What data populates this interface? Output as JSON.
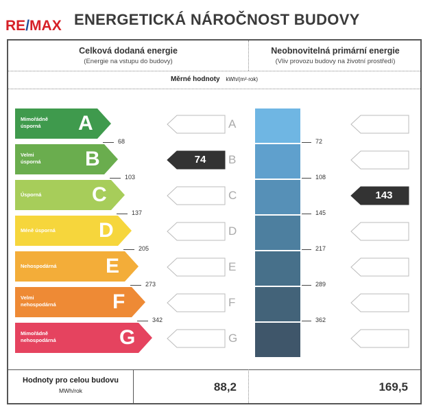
{
  "logo": {
    "re": "RE",
    "slash": "/",
    "max": "MAX"
  },
  "title": "ENERGETICKÁ NÁROČNOST BUDOVY",
  "left_header": {
    "title": "Celková dodaná energie",
    "subtitle": "(Energie na vstupu do budovy)"
  },
  "right_header": {
    "title": "Neobnovitelná primární energie",
    "subtitle": "(Vliv provozu budovy na životní prostředí)"
  },
  "specific": {
    "label": "Měrné hodnoty",
    "unit": "kWh/(m²·rok)"
  },
  "classes": [
    {
      "letter": "A",
      "label": "Mimořádně\núsporná",
      "color": "#3f9a4d"
    },
    {
      "letter": "B",
      "label": "Velmi\núsporná",
      "color": "#6aad4e"
    },
    {
      "letter": "C",
      "label": "Úsporná",
      "color": "#a7cd5a"
    },
    {
      "letter": "D",
      "label": "Méně úsporná",
      "color": "#f6d63c"
    },
    {
      "letter": "E",
      "label": "Nehospodárná",
      "color": "#f3ad39"
    },
    {
      "letter": "F",
      "label": "Velmi\nnehospodárná",
      "color": "#ee8a35"
    },
    {
      "letter": "G",
      "label": "Mimořádně\nnehospodárná",
      "color": "#e5435f"
    }
  ],
  "left_thresholds": [
    "68",
    "103",
    "137",
    "205",
    "273",
    "342"
  ],
  "right_thresholds": [
    "72",
    "108",
    "145",
    "217",
    "289",
    "362"
  ],
  "right_bar_colors": [
    "#6fb6e3",
    "#5fa0cd",
    "#5690b7",
    "#4d7f9f",
    "#47708a",
    "#436379",
    "#3f566a"
  ],
  "left_value": {
    "text": "74",
    "class_index": 1
  },
  "right_value": {
    "text": "143",
    "class_index": 2
  },
  "totals": {
    "label": "Hodnoty pro celou budovu",
    "unit": "MWh/rok",
    "left": "88,2",
    "right": "169,5"
  }
}
